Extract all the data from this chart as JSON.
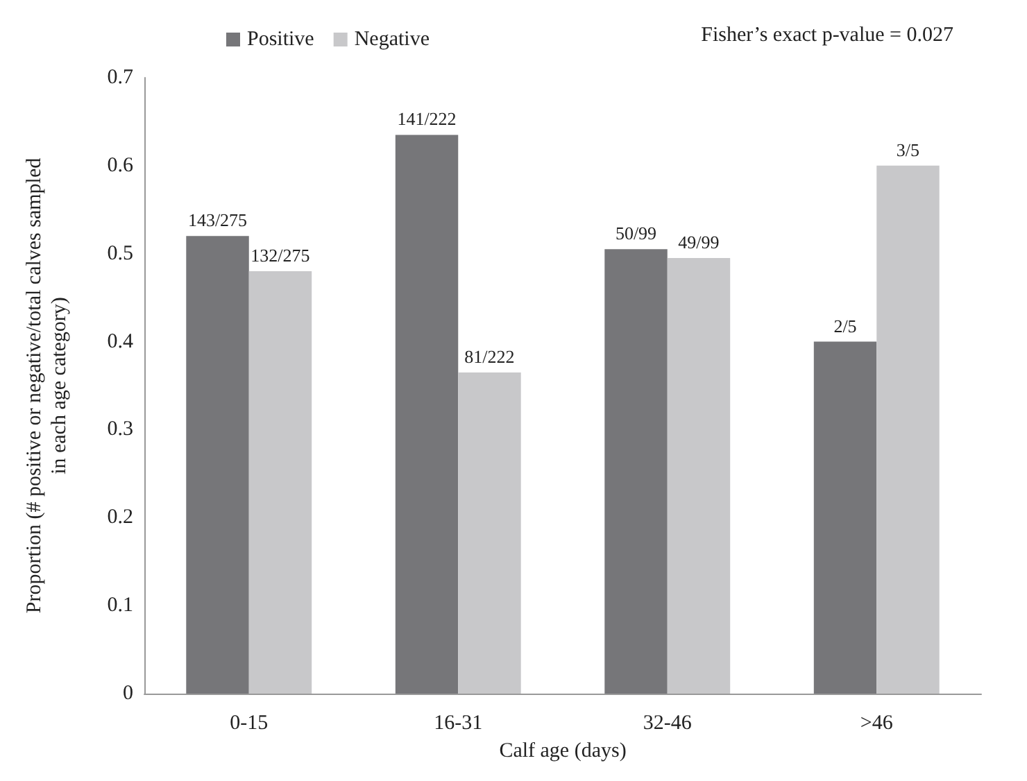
{
  "chart_data": {
    "type": "bar",
    "categories": [
      "0-15",
      "16-31",
      "32-46",
      ">46"
    ],
    "series": [
      {
        "name": "Positive",
        "color": "#767679",
        "values": [
          0.52,
          0.635,
          0.505,
          0.4
        ],
        "value_labels": [
          "143/275",
          "141/222",
          "50/99",
          "2/5"
        ]
      },
      {
        "name": "Negative",
        "color": "#c8c8ca",
        "values": [
          0.48,
          0.365,
          0.495,
          0.6
        ],
        "value_labels": [
          "132/275",
          "81/222",
          "49/99",
          "3/5"
        ]
      }
    ],
    "xlabel": "Calf age (days)",
    "ylabel": "Proportion (# positive or negative/total calves sampled\nin each age category)",
    "ylim": [
      0,
      0.7
    ],
    "yticks": [
      0,
      0.1,
      0.2,
      0.3,
      0.4,
      0.5,
      0.6,
      0.7
    ],
    "annotations": [
      "Fisher’s exact p-value = 0.027"
    ],
    "legend": "top",
    "grid": false
  }
}
